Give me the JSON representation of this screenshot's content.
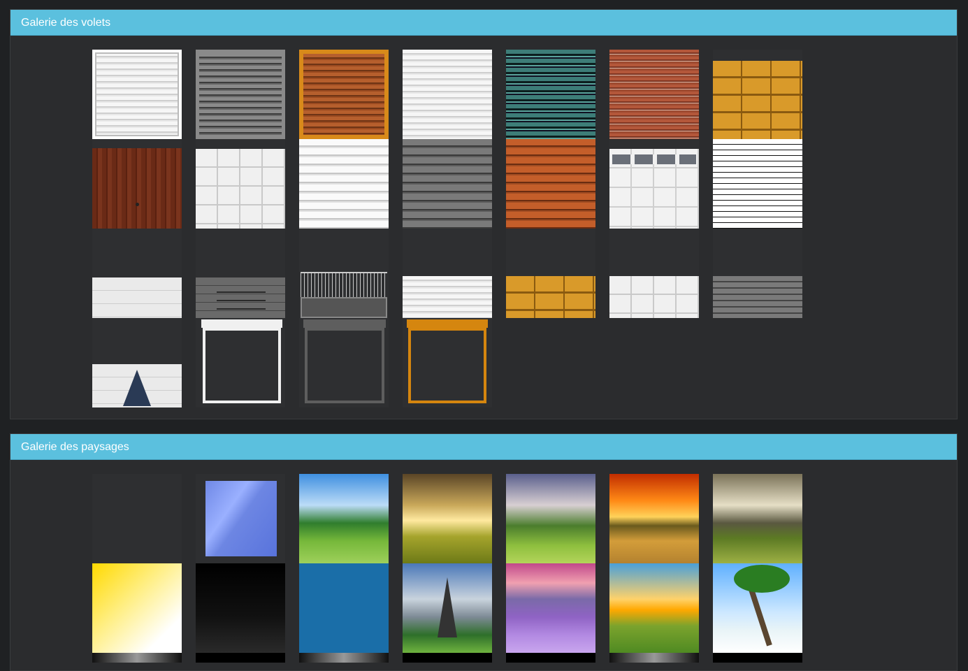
{
  "panels": {
    "shutters": {
      "title": "Galerie des volets"
    },
    "landscapes": {
      "title": "Galerie des paysages"
    }
  },
  "colors": {
    "header": "#5bc0de",
    "panel": "#2b2c2e",
    "page": "#1f2123"
  }
}
